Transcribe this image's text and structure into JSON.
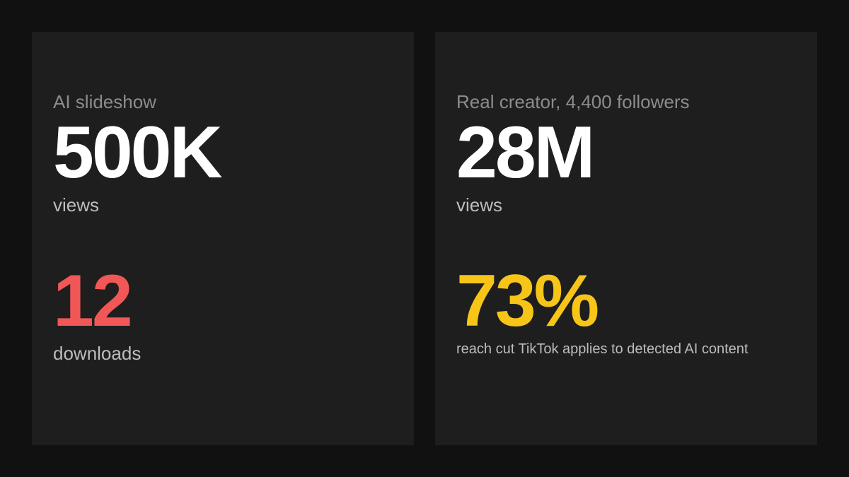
{
  "panels": [
    {
      "label": "AI slideshow",
      "stats": [
        {
          "value": "500K",
          "caption": "views",
          "color": "#ffffff"
        },
        {
          "value": "12",
          "caption": "downloads",
          "color": "#f25757"
        }
      ]
    },
    {
      "label": "Real creator, 4,400 followers",
      "stats": [
        {
          "value": "28M",
          "caption": "views",
          "color": "#ffffff"
        },
        {
          "value": "73%",
          "caption": "reach cut TikTok applies to detected AI content",
          "color": "#f7c518"
        }
      ]
    }
  ]
}
